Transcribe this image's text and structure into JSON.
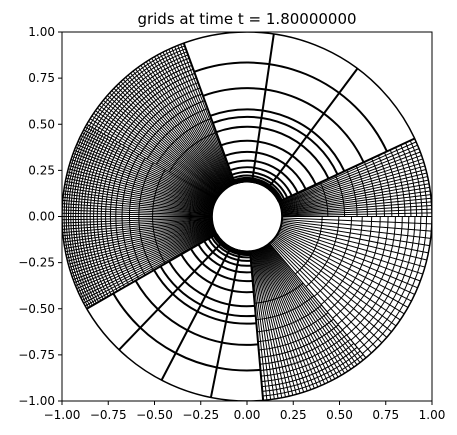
{
  "chart_data": {
    "type": "line",
    "title": "grids at time t =      1.80000000",
    "xlabel": "",
    "ylabel": "",
    "xlim": [
      -1.0,
      1.0
    ],
    "ylim": [
      -1.0,
      1.0
    ],
    "grid": false,
    "x_ticks": [
      -1.0,
      -0.75,
      -0.5,
      -0.25,
      0.0,
      0.25,
      0.5,
      0.75,
      1.0
    ],
    "x_tick_labels": [
      "−1.00",
      "−0.75",
      "−0.50",
      "−0.25",
      "0.00",
      "0.25",
      "0.50",
      "0.75",
      "1.00"
    ],
    "y_ticks": [
      1.0,
      0.75,
      0.5,
      0.25,
      0.0,
      -0.25,
      -0.5,
      -0.75,
      -1.0
    ],
    "y_tick_labels": [
      "1.00",
      "0.75",
      "0.50",
      "0.25",
      "0.00",
      "−0.25",
      "−0.50",
      "−0.75",
      "−1.00"
    ],
    "grid_geometry": {
      "inner_radius": 0.19,
      "outer_radius": 1.0,
      "mid_radius": 0.54,
      "line_color": "#000000",
      "sectors": [
        {
          "from_deg": 0,
          "to_deg": 25,
          "rings": 14,
          "spokes": 22,
          "ring_power": 0.45
        },
        {
          "from_deg": 25,
          "to_deg": 110,
          "rings": 18,
          "spokes": 3,
          "ring_power": 4.0
        },
        {
          "from_deg": 110,
          "to_deg": 150,
          "rings": 18,
          "spokes": 40,
          "ring_power": 0.35
        },
        {
          "from_deg": 150,
          "to_deg": 210,
          "rings": 22,
          "spokes": 60,
          "ring_power": 0.3
        },
        {
          "from_deg": 210,
          "to_deg": 275,
          "rings": 18,
          "spokes": 4,
          "ring_power": 4.0
        },
        {
          "from_deg": 275,
          "to_deg": 310,
          "rings": 14,
          "spokes": 30,
          "ring_power": 0.4
        },
        {
          "from_deg": 310,
          "to_deg": 360,
          "rings": 14,
          "spokes": 22,
          "ring_power": 0.5
        }
      ]
    }
  }
}
